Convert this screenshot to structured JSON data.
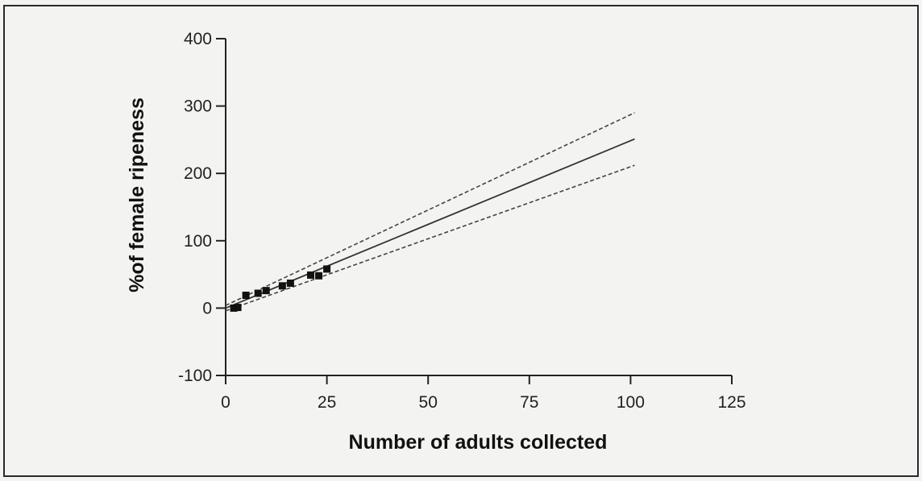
{
  "chart_data": {
    "type": "scatter",
    "title": "",
    "xlabel": "Number of adults collected",
    "ylabel": "%of female ripeness",
    "xlim": [
      0,
      125
    ],
    "ylim": [
      -100,
      400
    ],
    "x_ticks": [
      0,
      25,
      50,
      75,
      100,
      125
    ],
    "y_ticks": [
      -100,
      0,
      100,
      200,
      300,
      400
    ],
    "x_tick_labels": [
      "0",
      "25",
      "50",
      "75",
      "100",
      "125"
    ],
    "y_tick_labels": [
      "-100",
      "0",
      "100",
      "200",
      "300",
      "400"
    ],
    "grid": false,
    "legend": "none",
    "series": [
      {
        "kind": "points",
        "marker": "square",
        "color": "#111111",
        "x": [
          2,
          3,
          5,
          8,
          10,
          14,
          16,
          21,
          23,
          25
        ],
        "y": [
          0,
          1,
          19,
          22,
          26,
          33,
          37,
          49,
          48,
          58
        ]
      },
      {
        "kind": "fit",
        "style": "solid",
        "color": "#333333",
        "x": [
          0,
          101
        ],
        "y": [
          0,
          251
        ]
      },
      {
        "kind": "ci-upper",
        "style": "dashed",
        "color": "#444444",
        "x": [
          0,
          101
        ],
        "y": [
          4,
          290
        ]
      },
      {
        "kind": "ci-lower",
        "style": "dashed",
        "color": "#444444",
        "x": [
          0,
          101
        ],
        "y": [
          -4,
          212
        ]
      }
    ]
  }
}
